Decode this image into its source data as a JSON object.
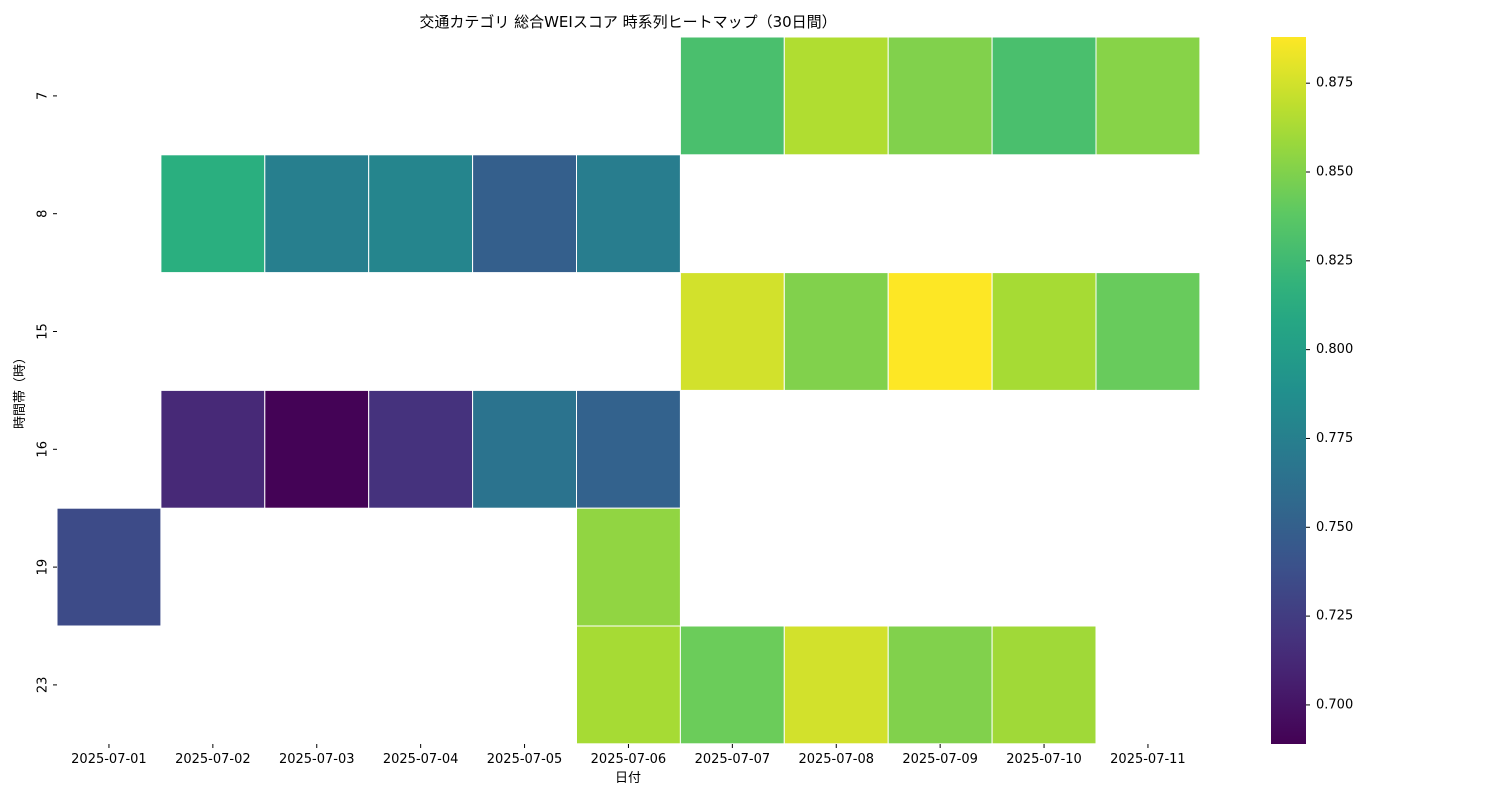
{
  "chart_data": {
    "type": "heatmap",
    "title": "交通カテゴリ 総合WEIスコア 時系列ヒートマップ（30日間）",
    "xlabel": "日付",
    "ylabel": "時間帯（時）",
    "x": [
      "2025-07-01",
      "2025-07-02",
      "2025-07-03",
      "2025-07-04",
      "2025-07-05",
      "2025-07-06",
      "2025-07-07",
      "2025-07-08",
      "2025-07-09",
      "2025-07-10",
      "2025-07-11"
    ],
    "y": [
      "7",
      "8",
      "15",
      "16",
      "19",
      "23"
    ],
    "values": [
      [
        null,
        null,
        null,
        null,
        null,
        null,
        0.83,
        0.865,
        0.85,
        0.83,
        0.852
      ],
      [
        null,
        0.815,
        0.775,
        0.78,
        0.75,
        0.773,
        null,
        null,
        null,
        null,
        null
      ],
      [
        null,
        null,
        null,
        null,
        null,
        null,
        0.875,
        0.85,
        0.888,
        0.862,
        0.842
      ],
      [
        null,
        0.712,
        0.69,
        0.718,
        0.765,
        0.752,
        null,
        null,
        null,
        null,
        null
      ],
      [
        0.735,
        null,
        null,
        null,
        null,
        0.855,
        null,
        null,
        null,
        null,
        null
      ],
      [
        null,
        null,
        null,
        null,
        null,
        0.862,
        0.843,
        0.875,
        0.85,
        0.86,
        null
      ]
    ],
    "colorbar": {
      "colormap": "viridis",
      "vmin": 0.689,
      "vmax": 0.888,
      "ticks": [
        "0.700",
        "0.725",
        "0.750",
        "0.775",
        "0.800",
        "0.825",
        "0.850",
        "0.875"
      ]
    },
    "grid": false
  }
}
